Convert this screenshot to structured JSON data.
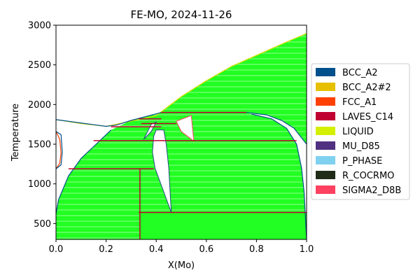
{
  "chart_data": {
    "type": "phase_diagram",
    "title": "FE-MO, 2024-11-26",
    "xlabel": "X(Mo)",
    "ylabel": "Temperature",
    "xlim": [
      0.0,
      1.0
    ],
    "ylim": [
      300,
      3000
    ],
    "xticks": [
      0.0,
      0.2,
      0.4,
      0.6,
      0.8,
      1.0
    ],
    "yticks": [
      500,
      1000,
      1500,
      2000,
      2500,
      3000
    ],
    "grid": false,
    "legend_position": "right",
    "legend": [
      {
        "name": "BCC_A2",
        "color": "#00508c"
      },
      {
        "name": "BCC_A2#2",
        "color": "#e6c000"
      },
      {
        "name": "FCC_A1",
        "color": "#ff4000"
      },
      {
        "name": "LAVES_C14",
        "color": "#c00030"
      },
      {
        "name": "LIQUID",
        "color": "#d4f000"
      },
      {
        "name": "MU_D85",
        "color": "#503080"
      },
      {
        "name": "P_PHASE",
        "color": "#80d0f0"
      },
      {
        "name": "R_COCRMO",
        "color": "#202c18"
      },
      {
        "name": "SIGMA2_D8B",
        "color": "#ff4060"
      }
    ],
    "boundaries": {
      "liquidus": [
        [
          0.0,
          1810
        ],
        [
          0.1,
          1760
        ],
        [
          0.2,
          1725
        ],
        [
          0.3,
          1790
        ],
        [
          0.4,
          1860
        ],
        [
          0.5,
          2100
        ],
        [
          0.6,
          2300
        ],
        [
          0.7,
          2480
        ],
        [
          0.8,
          2620
        ],
        [
          0.9,
          2760
        ],
        [
          1.0,
          2896
        ]
      ],
      "solidus": [
        [
          0.0,
          1810
        ],
        [
          0.2,
          1725
        ],
        [
          0.24,
          1740
        ],
        [
          0.3,
          1800
        ],
        [
          0.42,
          1900
        ],
        [
          0.76,
          1900
        ],
        [
          0.84,
          1870
        ],
        [
          0.9,
          1800
        ],
        [
          0.95,
          1700
        ],
        [
          1.0,
          1500
        ]
      ],
      "bcc_left_boundary": [
        [
          0.0,
          620
        ],
        [
          0.01,
          800
        ],
        [
          0.05,
          1100
        ],
        [
          0.1,
          1320
        ],
        [
          0.16,
          1500
        ],
        [
          0.22,
          1680
        ]
      ],
      "bcc_right_boundary": [
        [
          0.78,
          1880
        ],
        [
          0.86,
          1820
        ],
        [
          0.92,
          1700
        ],
        [
          0.96,
          1500
        ],
        [
          0.98,
          1200
        ],
        [
          0.99,
          900
        ],
        [
          1.0,
          300
        ]
      ],
      "fcc_loop": [
        [
          0.0,
          1660
        ],
        [
          0.015,
          1560
        ],
        [
          0.02,
          1390
        ],
        [
          0.015,
          1260
        ],
        [
          0.0,
          1190
        ]
      ],
      "mu_lens": [
        [
          0.4,
          1680
        ],
        [
          0.39,
          1600
        ],
        [
          0.385,
          1400
        ],
        [
          0.395,
          1200
        ],
        [
          0.43,
          900
        ],
        [
          0.46,
          640
        ]
      ],
      "mu_right": [
        [
          0.43,
          1680
        ],
        [
          0.44,
          1500
        ],
        [
          0.45,
          1200
        ],
        [
          0.46,
          640
        ]
      ],
      "r_phase_region": [
        [
          0.48,
          1790
        ],
        [
          0.54,
          1860
        ],
        [
          0.55,
          1540
        ],
        [
          0.5,
          1660
        ]
      ],
      "sigma_triangle": [
        [
          0.35,
          1560
        ],
        [
          0.38,
          1750
        ],
        [
          0.4,
          1780
        ],
        [
          0.38,
          1660
        ]
      ]
    },
    "invariants": [
      {
        "x": [
          0.22,
          0.42
        ],
        "T": 1720
      },
      {
        "x": [
          0.33,
          0.42
        ],
        "T": 1820
      },
      {
        "x": [
          0.42,
          0.76
        ],
        "T": 1900
      },
      {
        "x": [
          0.34,
          0.48
        ],
        "T": 1760
      },
      {
        "x": [
          0.15,
          0.96
        ],
        "T": 1545
      },
      {
        "x": [
          0.05,
          0.39
        ],
        "T": 1190
      },
      {
        "x": [
          0.33,
          1.0
        ],
        "T": 640
      }
    ],
    "verticals": [
      {
        "x": 0.335,
        "T": [
          300,
          1190
        ]
      }
    ]
  }
}
